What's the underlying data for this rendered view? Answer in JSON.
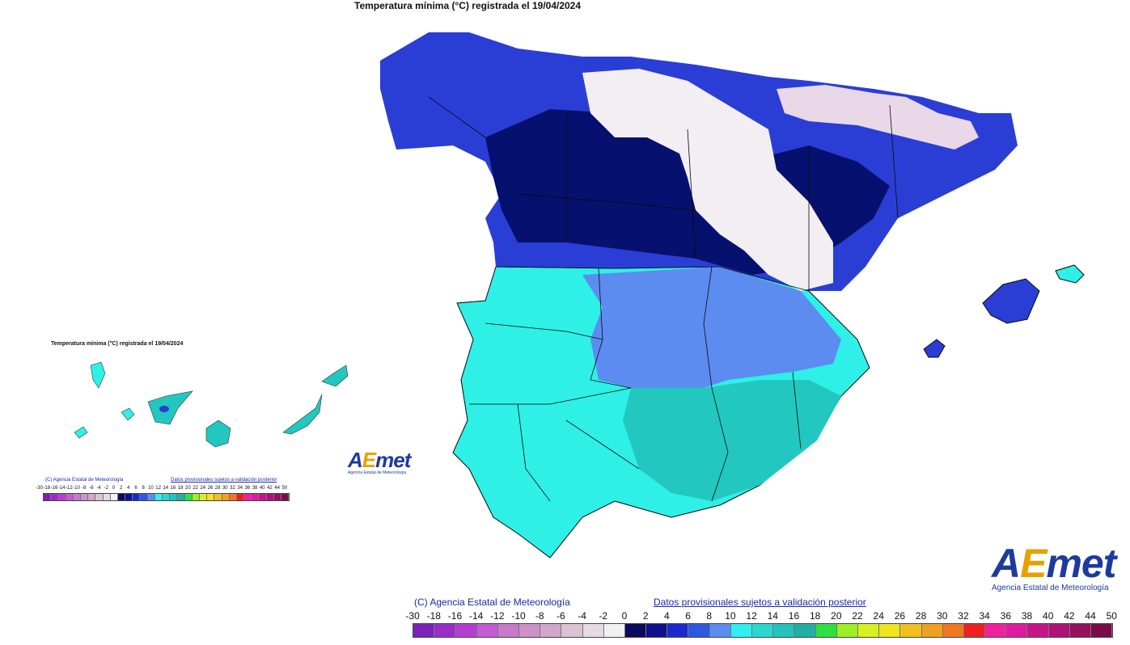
{
  "title": "Temperatura mínima (°C) registrada el 19/04/2024",
  "inset_title": "Temperatura mínima (°C) registrada el 19/04/2024",
  "credits": {
    "agency": "(C) Agencia Estatal de Meteorología",
    "disclaimer": "Datos provisionales sujetos a validación posterior"
  },
  "logo": {
    "wordmark_prefix": "A",
    "wordmark_e": "E",
    "wordmark_suffix": "met",
    "subtitle": "Agencia Estatal de Meteorología"
  },
  "legend": {
    "labels": [
      "-30",
      "-18",
      "-16",
      "-14",
      "-12",
      "-10",
      "-8",
      "-6",
      "-4",
      "-2",
      "0",
      "2",
      "4",
      "6",
      "8",
      "10",
      "12",
      "14",
      "16",
      "18",
      "20",
      "22",
      "24",
      "26",
      "28",
      "30",
      "32",
      "34",
      "36",
      "38",
      "40",
      "42",
      "44",
      "50"
    ],
    "colors": [
      "#7b22b8",
      "#9a2cc8",
      "#b43ed2",
      "#c45ad6",
      "#c77ac8",
      "#cc92c8",
      "#d2a6cc",
      "#dcc2d4",
      "#e6dae2",
      "#f2f0f2",
      "#0a0a5e",
      "#10108c",
      "#1a2ad0",
      "#2e58e0",
      "#5c8cf0",
      "#2ef0f0",
      "#28d8d0",
      "#22c4bc",
      "#20aea6",
      "#2ee040",
      "#9af020",
      "#d8f020",
      "#f0e420",
      "#f0c020",
      "#f0a020",
      "#f07820",
      "#f02020",
      "#f020a0",
      "#e01aa0",
      "#c8148c",
      "#b01078",
      "#961060",
      "#7a0c48"
    ]
  },
  "colors": {
    "cold": "#06106e",
    "very_cold": "#f2eef2",
    "cool": "#2a3ed6",
    "mild": "#5c8cf0",
    "warm": "#2ef0e6",
    "warm2": "#22c8c0"
  }
}
